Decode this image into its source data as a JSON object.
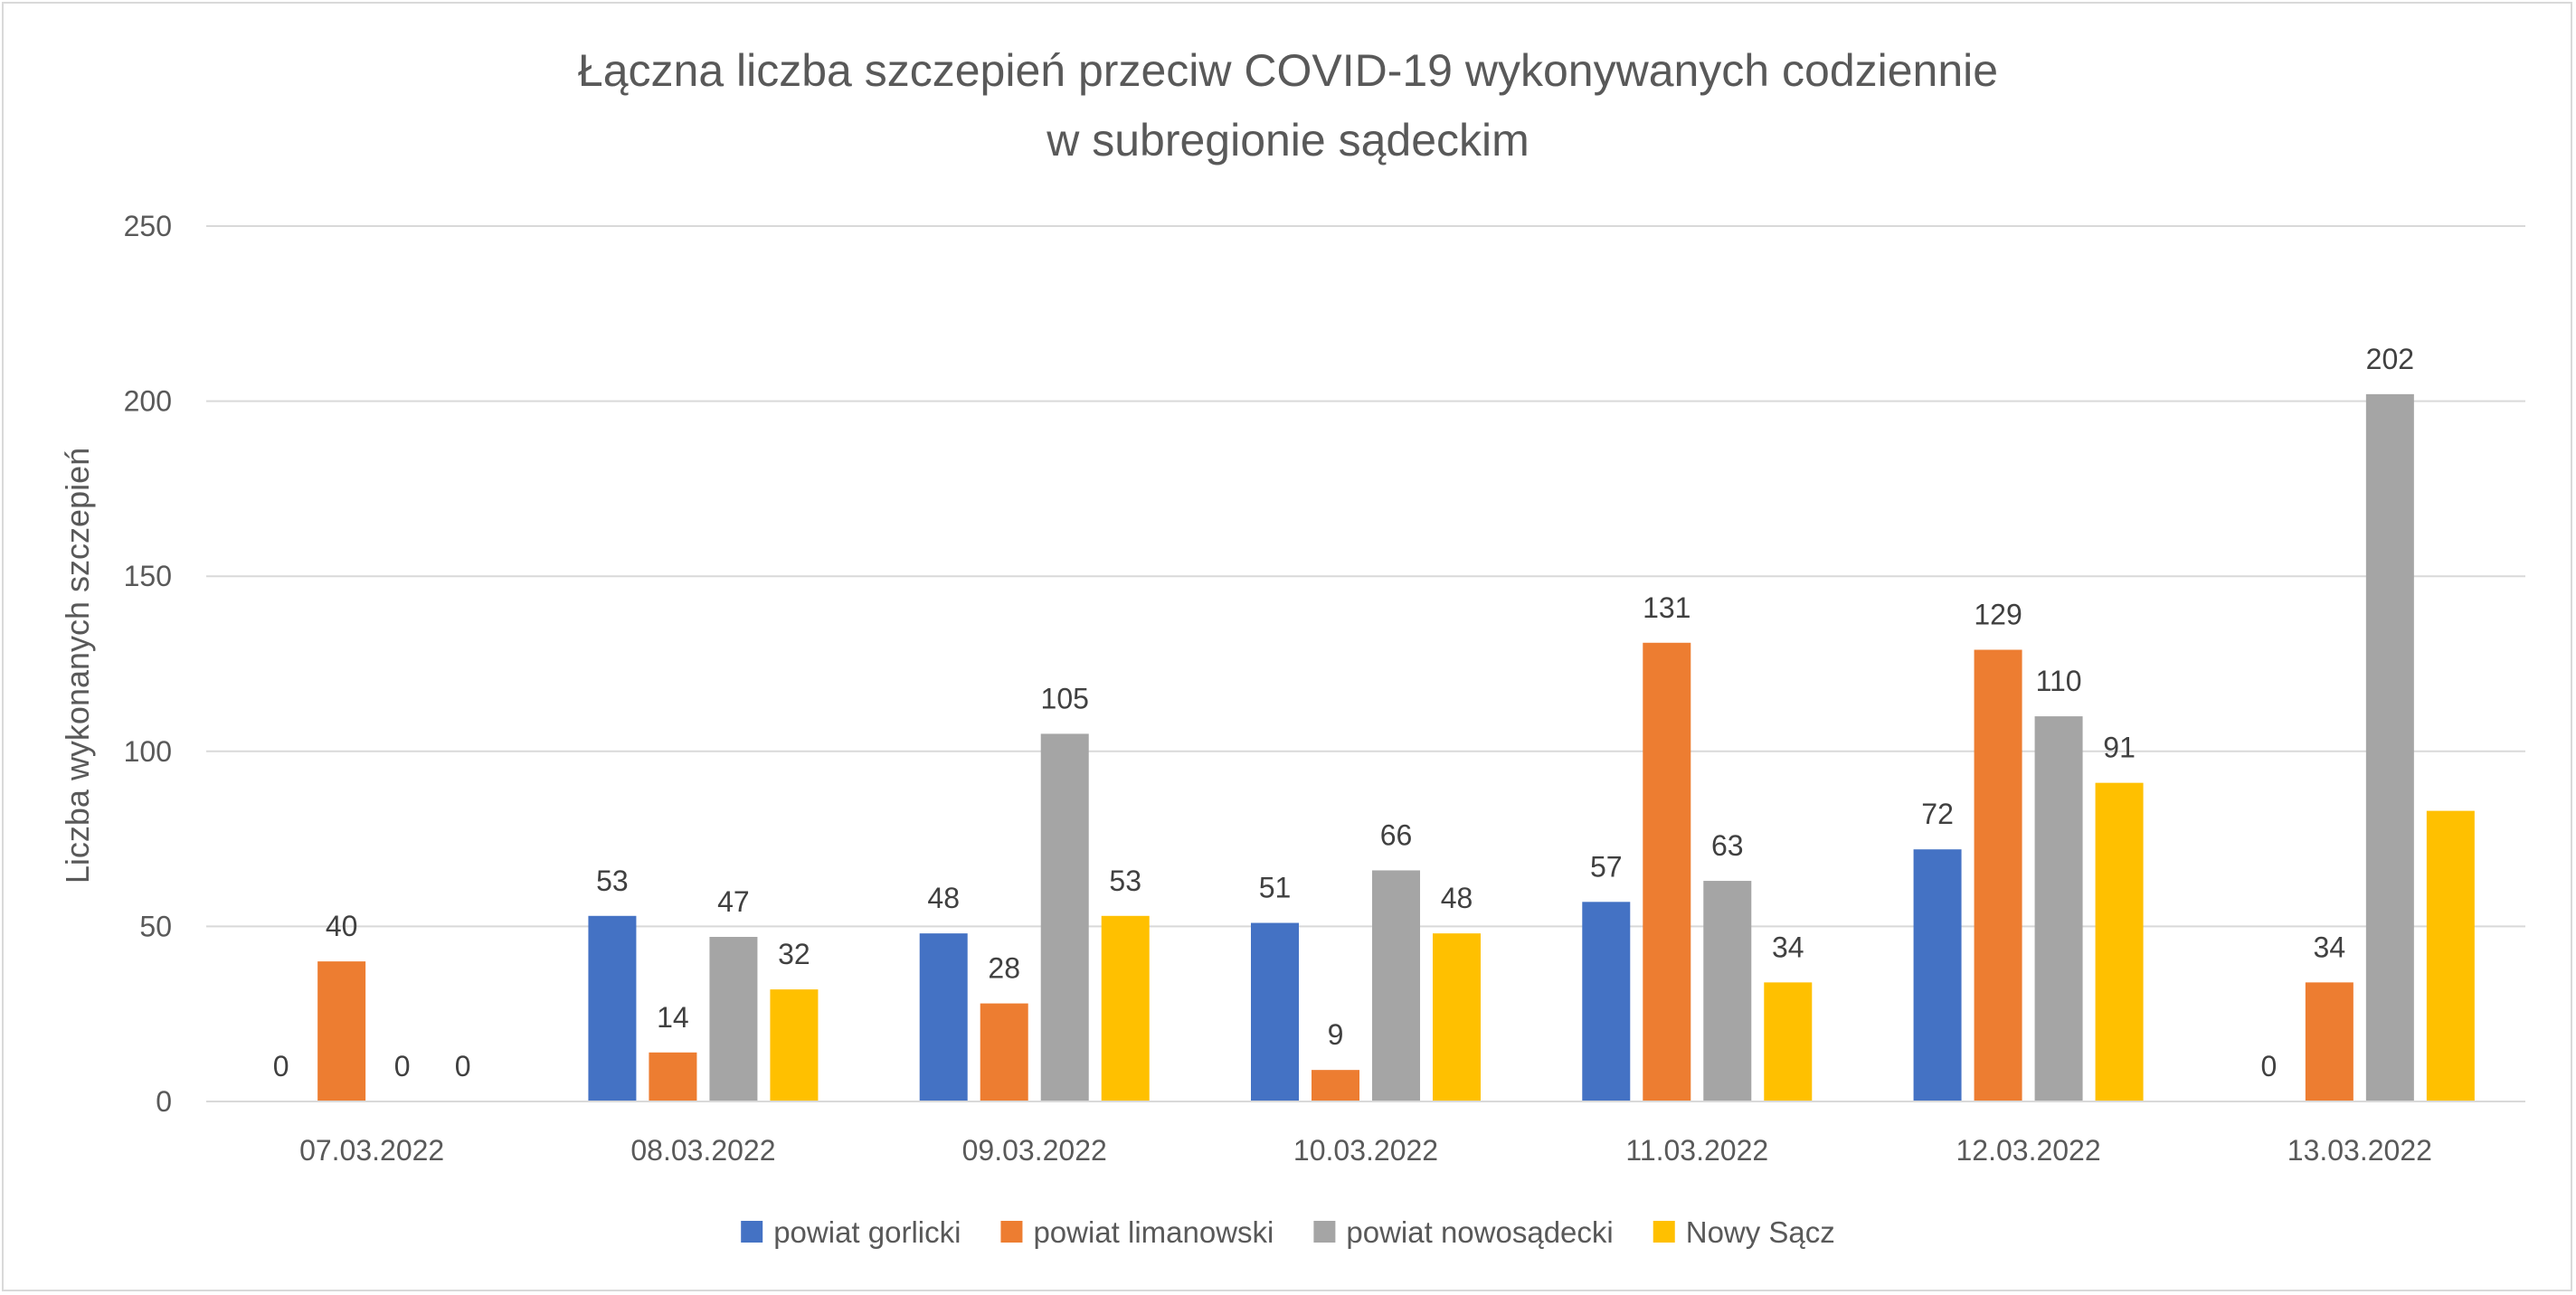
{
  "chart_data": {
    "type": "bar",
    "title": "Łączna liczba szczepień przeciw COVID-19 wykonywanych codziennie",
    "subtitle": "w subregionie sądeckim",
    "xlabel": "",
    "ylabel": "Liczba wykonanych szczepień",
    "ylim": [
      0,
      250
    ],
    "yticks": [
      "0",
      "50",
      "100",
      "150",
      "200",
      "250"
    ],
    "grid": true,
    "legend_position": "bottom",
    "categories": [
      "07.03.2022",
      "08.03.2022",
      "09.03.2022",
      "10.03.2022",
      "11.03.2022",
      "12.03.2022",
      "13.03.2022"
    ],
    "series": [
      {
        "name": "powiat gorlicki",
        "color": "#4472c4",
        "values": [
          0,
          53,
          48,
          51,
          57,
          72,
          0
        ],
        "labels": [
          "0",
          "53",
          "48",
          "51",
          "57",
          "72",
          "0"
        ]
      },
      {
        "name": "powiat limanowski",
        "color": "#ed7d31",
        "values": [
          40,
          14,
          28,
          9,
          131,
          129,
          34
        ],
        "labels": [
          "40",
          "14",
          "28",
          "9",
          "131",
          "129",
          "34"
        ]
      },
      {
        "name": "powiat nowosądecki",
        "color": "#a5a5a5",
        "values": [
          0,
          47,
          105,
          66,
          63,
          110,
          202
        ],
        "labels": [
          "0",
          "47",
          "105",
          "66",
          "63",
          "110",
          "202"
        ]
      },
      {
        "name": "Nowy Sącz",
        "color": "#ffc000",
        "values": [
          0,
          32,
          53,
          48,
          34,
          91,
          83
        ],
        "labels": [
          "0",
          "32",
          "53",
          "48",
          "34",
          "91",
          "83"
        ]
      }
    ],
    "hidden_labels": [
      [
        6,
        3
      ]
    ]
  }
}
